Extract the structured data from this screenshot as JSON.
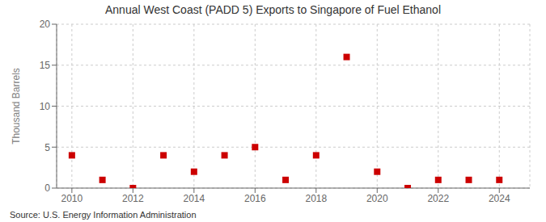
{
  "chart_data": {
    "type": "scatter",
    "title": "Annual West Coast (PADD 5) Exports to Singapore of Fuel Ethanol",
    "ylabel": "Thousand Barrels",
    "annotation": "Source: U.S. Energy Information Administration",
    "x": [
      2010,
      2011,
      2012,
      2013,
      2014,
      2015,
      2016,
      2017,
      2018,
      2019,
      2020,
      2021,
      2022,
      2023,
      2024
    ],
    "values": [
      4,
      1,
      0,
      4,
      2,
      4,
      5,
      1,
      4,
      16,
      2,
      0,
      1,
      1,
      1
    ],
    "color": "#CC0000",
    "marker": "square",
    "xlim": [
      2009.5,
      2025.0
    ],
    "xticks": [
      2010,
      2012,
      2014,
      2016,
      2018,
      2020,
      2022,
      2024
    ],
    "ylim": [
      0,
      20
    ],
    "yticks": [
      0,
      5,
      10,
      15,
      20
    ],
    "grid": true
  }
}
